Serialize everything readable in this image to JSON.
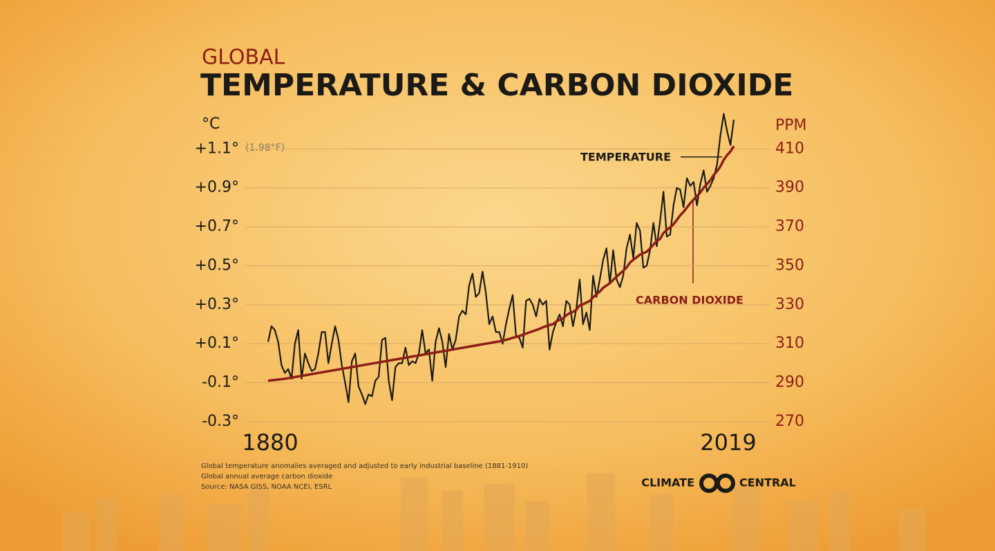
{
  "chart_data": {
    "type": "line",
    "supertitle": "GLOBAL",
    "title": "TEMPERATURE & CARBON DIOXIDE",
    "y_label": "°C",
    "y2_label": "PPM",
    "y_annotation": "(1.98°F)",
    "x": [
      1880,
      1881,
      1882,
      1883,
      1884,
      1885,
      1886,
      1887,
      1888,
      1889,
      1890,
      1891,
      1892,
      1893,
      1894,
      1895,
      1896,
      1897,
      1898,
      1899,
      1900,
      1901,
      1902,
      1903,
      1904,
      1905,
      1906,
      1907,
      1908,
      1909,
      1910,
      1911,
      1912,
      1913,
      1914,
      1915,
      1916,
      1917,
      1918,
      1919,
      1920,
      1921,
      1922,
      1923,
      1924,
      1925,
      1926,
      1927,
      1928,
      1929,
      1930,
      1931,
      1932,
      1933,
      1934,
      1935,
      1936,
      1937,
      1938,
      1939,
      1940,
      1941,
      1942,
      1943,
      1944,
      1945,
      1946,
      1947,
      1948,
      1949,
      1950,
      1951,
      1952,
      1953,
      1954,
      1955,
      1956,
      1957,
      1958,
      1959,
      1960,
      1961,
      1962,
      1963,
      1964,
      1965,
      1966,
      1967,
      1968,
      1969,
      1970,
      1971,
      1972,
      1973,
      1974,
      1975,
      1976,
      1977,
      1978,
      1979,
      1980,
      1981,
      1982,
      1983,
      1984,
      1985,
      1986,
      1987,
      1988,
      1989,
      1990,
      1991,
      1992,
      1993,
      1994,
      1995,
      1996,
      1997,
      1998,
      1999,
      2000,
      2001,
      2002,
      2003,
      2004,
      2005,
      2006,
      2007,
      2008,
      2009,
      2010,
      2011,
      2012,
      2013,
      2014,
      2015,
      2016,
      2017,
      2018,
      2019
    ],
    "series": [
      {
        "name": "TEMPERATURE",
        "color": "#1c1a16",
        "axis": "y",
        "values": [
          0.11,
          0.19,
          0.17,
          0.11,
          -0.01,
          -0.05,
          -0.03,
          -0.08,
          0.1,
          0.17,
          -0.08,
          0.05,
          0.0,
          -0.04,
          -0.03,
          0.05,
          0.16,
          0.16,
          0.0,
          0.1,
          0.19,
          0.12,
          -0.01,
          -0.1,
          -0.2,
          0.01,
          0.05,
          -0.12,
          -0.16,
          -0.21,
          -0.16,
          -0.17,
          -0.09,
          -0.07,
          0.12,
          0.13,
          -0.09,
          -0.19,
          -0.02,
          0.0,
          0.0,
          0.08,
          -0.01,
          0.01,
          0.0,
          0.05,
          0.17,
          0.05,
          0.07,
          -0.09,
          0.11,
          0.18,
          0.11,
          -0.02,
          0.15,
          0.07,
          0.12,
          0.24,
          0.27,
          0.25,
          0.4,
          0.46,
          0.34,
          0.36,
          0.47,
          0.36,
          0.2,
          0.24,
          0.16,
          0.16,
          0.1,
          0.2,
          0.28,
          0.35,
          0.14,
          0.13,
          0.08,
          0.32,
          0.33,
          0.3,
          0.24,
          0.33,
          0.3,
          0.32,
          0.07,
          0.16,
          0.21,
          0.25,
          0.19,
          0.32,
          0.3,
          0.19,
          0.28,
          0.43,
          0.2,
          0.26,
          0.17,
          0.45,
          0.34,
          0.43,
          0.53,
          0.59,
          0.41,
          0.58,
          0.43,
          0.39,
          0.45,
          0.59,
          0.66,
          0.54,
          0.72,
          0.68,
          0.49,
          0.5,
          0.58,
          0.72,
          0.6,
          0.73,
          0.88,
          0.65,
          0.66,
          0.81,
          0.9,
          0.89,
          0.8,
          0.95,
          0.91,
          0.93,
          0.81,
          0.92,
          0.99,
          0.88,
          0.91,
          0.95,
          1.02,
          1.17,
          1.28,
          1.19,
          1.12,
          1.25
        ]
      },
      {
        "name": "CARBON DIOXIDE",
        "color": "#8c1d18",
        "axis": "y2",
        "values": [
          291.0,
          291.2,
          291.4,
          291.6,
          291.8,
          292.0,
          292.3,
          292.6,
          292.9,
          293.2,
          293.5,
          293.8,
          294.1,
          294.4,
          294.7,
          295.0,
          295.3,
          295.6,
          295.9,
          296.2,
          296.5,
          296.8,
          297.1,
          297.4,
          297.7,
          298.0,
          298.3,
          298.6,
          298.9,
          299.2,
          299.5,
          299.8,
          300.1,
          300.4,
          300.7,
          301.0,
          301.3,
          301.6,
          301.9,
          302.2,
          302.5,
          302.8,
          303.1,
          303.4,
          303.7,
          304.0,
          304.3,
          304.6,
          304.9,
          305.2,
          305.5,
          305.8,
          306.1,
          306.4,
          306.7,
          307.0,
          307.3,
          307.6,
          307.9,
          308.2,
          308.5,
          308.8,
          309.1,
          309.4,
          309.7,
          310.0,
          310.3,
          310.6,
          310.9,
          311.2,
          311.5,
          312.0,
          312.5,
          313.0,
          313.5,
          314.0,
          314.6,
          315.2,
          315.8,
          316.4,
          317.0,
          317.6,
          318.4,
          319.0,
          319.6,
          320.0,
          321.4,
          322.2,
          323.0,
          324.6,
          325.7,
          326.3,
          327.5,
          329.7,
          330.2,
          331.1,
          332.0,
          333.8,
          335.4,
          336.8,
          338.7,
          339.9,
          341.1,
          342.8,
          344.4,
          346.0,
          347.4,
          349.2,
          351.6,
          353.1,
          354.4,
          355.7,
          356.5,
          357.2,
          358.9,
          360.9,
          362.7,
          363.8,
          366.8,
          368.5,
          369.7,
          371.3,
          373.5,
          375.9,
          377.7,
          379.9,
          382.1,
          384.0,
          385.8,
          387.6,
          390.1,
          391.9,
          393.9,
          396.6,
          398.6,
          401.0,
          404.4,
          406.8,
          408.7,
          411.4
        ]
      }
    ],
    "xlim": [
      1880,
      2019
    ],
    "xticks": [
      1880,
      2019
    ],
    "ylim": [
      -0.35,
      1.3
    ],
    "yticks": [
      {
        "value": -0.3,
        "label": "-0.3°"
      },
      {
        "value": -0.1,
        "label": "-0.1°"
      },
      {
        "value": 0.1,
        "label": "+0.1°"
      },
      {
        "value": 0.3,
        "label": "+0.3°"
      },
      {
        "value": 0.5,
        "label": "+0.5°"
      },
      {
        "value": 0.7,
        "label": "+0.7°"
      },
      {
        "value": 0.9,
        "label": "+0.9°"
      },
      {
        "value": 1.1,
        "label": "+1.1°"
      }
    ],
    "y2lim": [
      265,
      430
    ],
    "y2ticks": [
      270,
      290,
      310,
      330,
      350,
      370,
      390,
      410
    ],
    "grid": true,
    "notes": [
      "Global temperature anomalies averaged and adjusted to early industrial baseline (1881-1910)",
      "Global annual average carbon dioxide",
      "Source: NASA GISS, NOAA NCEI, ESRL"
    ],
    "brand": [
      "CLIMATE",
      "CENTRAL"
    ]
  }
}
